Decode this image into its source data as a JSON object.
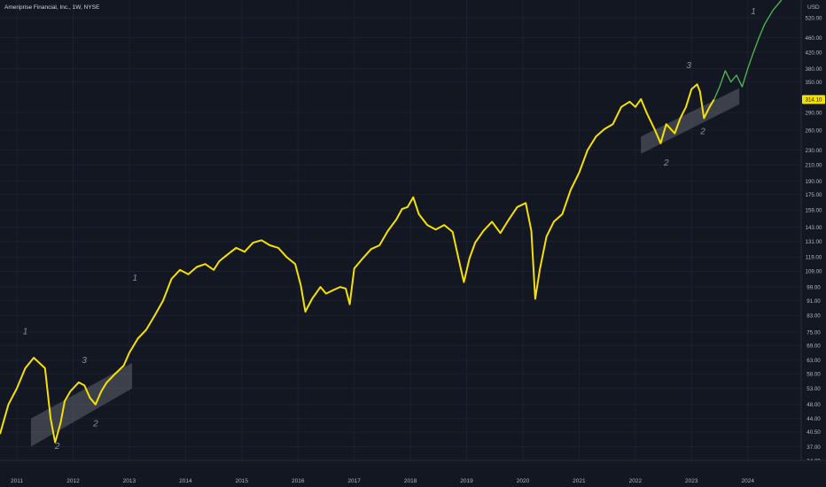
{
  "header": {
    "title": "Ameriprise Financial, Inc., 1W, NYSE"
  },
  "axis": {
    "currency": "USD"
  },
  "price_tag": {
    "value": "314.10",
    "color": "#f5e100"
  },
  "colors": {
    "line": "#f5e100",
    "projection": "#4caf50",
    "channel": "#8a8d96",
    "wave_label": "#8c8f9a"
  },
  "chart_data": {
    "type": "line",
    "title": "Ameriprise Financial, Inc., 1W, NYSE",
    "y_scale": "log",
    "ylim": [
      34,
      580
    ],
    "xlim": [
      2010.7,
      2024.95
    ],
    "x_ticks": [
      "2011",
      "2012",
      "2013",
      "2014",
      "2015",
      "2016",
      "2017",
      "2018",
      "2019",
      "2020",
      "2021",
      "2022",
      "2023",
      "2024"
    ],
    "y_ticks": [
      "520.00",
      "460.00",
      "420.00",
      "380.00",
      "350.00",
      "314.10",
      "290.00",
      "260.00",
      "230.00",
      "210.00",
      "190.00",
      "175.00",
      "159.00",
      "143.00",
      "131.00",
      "119.00",
      "109.00",
      "99.00",
      "91.00",
      "83.00",
      "75.00",
      "69.00",
      "63.00",
      "58.00",
      "53.00",
      "48.00",
      "44.00",
      "40.50",
      "37.00",
      "34.00"
    ],
    "series": [
      {
        "values": [
          [
            2010.7,
            40
          ],
          [
            2010.85,
            48
          ],
          [
            2011.0,
            53
          ],
          [
            2011.15,
            60
          ],
          [
            2011.3,
            64
          ],
          [
            2011.4,
            62
          ],
          [
            2011.5,
            60
          ],
          [
            2011.6,
            44
          ],
          [
            2011.68,
            38
          ],
          [
            2011.78,
            43
          ],
          [
            2011.85,
            49
          ],
          [
            2011.95,
            52
          ],
          [
            2012.1,
            55
          ],
          [
            2012.2,
            54
          ],
          [
            2012.3,
            50
          ],
          [
            2012.4,
            48
          ],
          [
            2012.5,
            52
          ],
          [
            2012.6,
            55
          ],
          [
            2012.75,
            58
          ],
          [
            2012.9,
            61
          ],
          [
            2013.0,
            66
          ],
          [
            2013.15,
            72
          ],
          [
            2013.3,
            76
          ],
          [
            2013.45,
            83
          ],
          [
            2013.6,
            91
          ],
          [
            2013.75,
            104
          ],
          [
            2013.9,
            110
          ],
          [
            2014.05,
            107
          ],
          [
            2014.2,
            112
          ],
          [
            2014.35,
            114
          ],
          [
            2014.5,
            110
          ],
          [
            2014.6,
            116
          ],
          [
            2014.75,
            121
          ],
          [
            2014.9,
            126
          ],
          [
            2015.05,
            123
          ],
          [
            2015.2,
            130
          ],
          [
            2015.35,
            132
          ],
          [
            2015.5,
            128
          ],
          [
            2015.65,
            126
          ],
          [
            2015.8,
            119
          ],
          [
            2015.95,
            114
          ],
          [
            2016.05,
            100
          ],
          [
            2016.13,
            85
          ],
          [
            2016.25,
            92
          ],
          [
            2016.4,
            99
          ],
          [
            2016.5,
            95
          ],
          [
            2016.62,
            97
          ],
          [
            2016.75,
            99
          ],
          [
            2016.85,
            98
          ],
          [
            2016.92,
            89
          ],
          [
            2017.0,
            111
          ],
          [
            2017.15,
            118
          ],
          [
            2017.3,
            125
          ],
          [
            2017.45,
            128
          ],
          [
            2017.6,
            140
          ],
          [
            2017.75,
            150
          ],
          [
            2017.85,
            160
          ],
          [
            2017.95,
            162
          ],
          [
            2018.05,
            172
          ],
          [
            2018.15,
            155
          ],
          [
            2018.3,
            145
          ],
          [
            2018.45,
            141
          ],
          [
            2018.6,
            145
          ],
          [
            2018.75,
            139
          ],
          [
            2018.85,
            119
          ],
          [
            2018.95,
            102
          ],
          [
            2019.05,
            118
          ],
          [
            2019.15,
            130
          ],
          [
            2019.3,
            140
          ],
          [
            2019.45,
            148
          ],
          [
            2019.6,
            138
          ],
          [
            2019.75,
            150
          ],
          [
            2019.9,
            162
          ],
          [
            2020.05,
            166
          ],
          [
            2020.15,
            140
          ],
          [
            2020.22,
            92
          ],
          [
            2020.3,
            110
          ],
          [
            2020.42,
            135
          ],
          [
            2020.55,
            148
          ],
          [
            2020.7,
            155
          ],
          [
            2020.85,
            180
          ],
          [
            2021.0,
            200
          ],
          [
            2021.15,
            230
          ],
          [
            2021.3,
            250
          ],
          [
            2021.45,
            262
          ],
          [
            2021.6,
            270
          ],
          [
            2021.75,
            300
          ],
          [
            2021.9,
            310
          ],
          [
            2022.0,
            300
          ],
          [
            2022.1,
            315
          ],
          [
            2022.2,
            290
          ],
          [
            2022.35,
            260
          ],
          [
            2022.45,
            240
          ],
          [
            2022.55,
            270
          ],
          [
            2022.7,
            255
          ],
          [
            2022.8,
            280
          ],
          [
            2022.9,
            300
          ],
          [
            2023.0,
            335
          ],
          [
            2023.1,
            345
          ],
          [
            2023.15,
            330
          ],
          [
            2023.22,
            280
          ],
          [
            2023.32,
            300
          ],
          [
            2023.4,
            314.1
          ]
        ]
      },
      {
        "values": [
          [
            2023.4,
            314.1
          ],
          [
            2023.5,
            340
          ],
          [
            2023.6,
            375
          ],
          [
            2023.7,
            350
          ],
          [
            2023.8,
            365
          ],
          [
            2023.9,
            340
          ],
          [
            2024.0,
            380
          ],
          [
            2024.1,
            420
          ],
          [
            2024.2,
            460
          ],
          [
            2024.3,
            500
          ],
          [
            2024.45,
            545
          ],
          [
            2024.6,
            580
          ]
        ]
      }
    ],
    "channels": [
      [
        [
          2011.25,
          44
        ],
        [
          2013.05,
          62
        ],
        [
          2013.05,
          53
        ],
        [
          2011.25,
          37
        ]
      ],
      [
        [
          2022.1,
          250
        ],
        [
          2023.85,
          337
        ],
        [
          2023.85,
          305
        ],
        [
          2022.1,
          225
        ]
      ]
    ],
    "annotations": [
      {
        "text": "1",
        "x": 2011.15,
        "y": 74
      },
      {
        "text": "3",
        "x": 2012.2,
        "y": 62
      },
      {
        "text": "2",
        "x": 2011.72,
        "y": 36.5
      },
      {
        "text": "2",
        "x": 2012.4,
        "y": 42
      },
      {
        "text": "1",
        "x": 2013.1,
        "y": 103
      },
      {
        "text": "3",
        "x": 2022.95,
        "y": 381
      },
      {
        "text": "2",
        "x": 2022.55,
        "y": 209
      },
      {
        "text": "2",
        "x": 2023.2,
        "y": 254
      },
      {
        "text": "1",
        "x": 2024.1,
        "y": 532
      }
    ],
    "grid": true
  }
}
